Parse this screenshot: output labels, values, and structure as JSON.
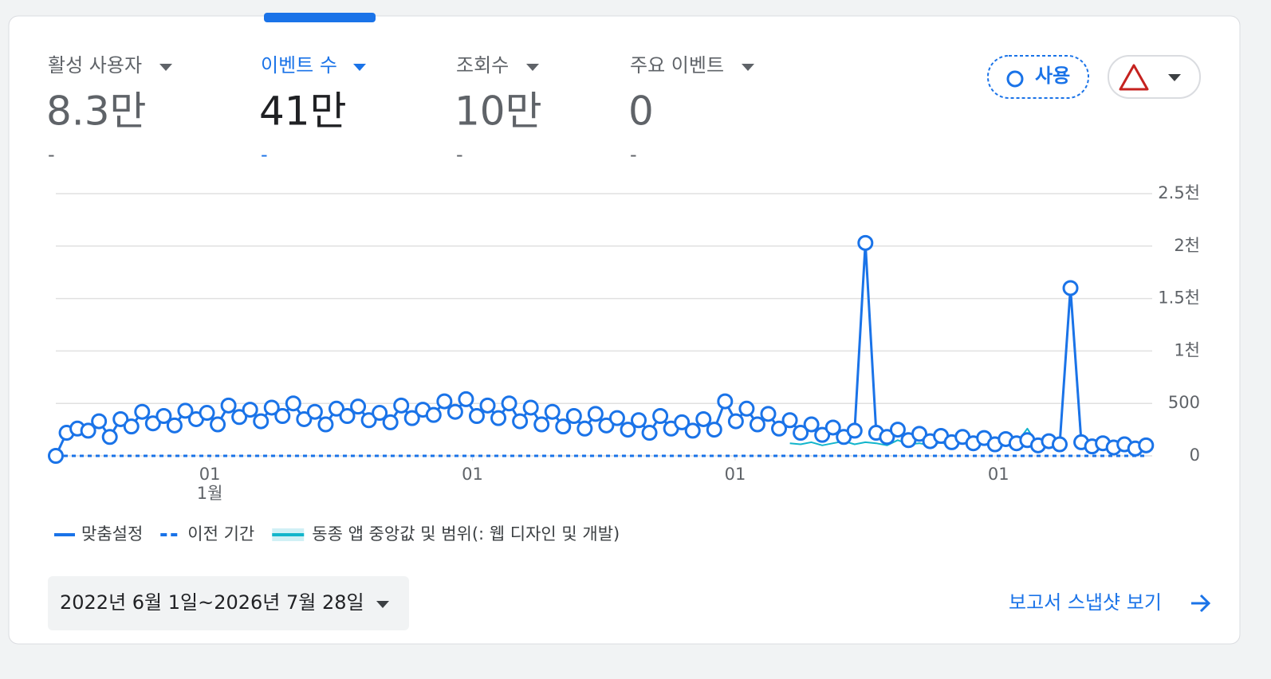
{
  "metrics": [
    {
      "label": "활성 사용자",
      "value": "8.3만",
      "change": "-"
    },
    {
      "label": "이벤트 수",
      "value": "41만",
      "change": "-"
    },
    {
      "label": "조회수",
      "value": "10만",
      "change": "-"
    },
    {
      "label": "주요 이벤트",
      "value": "0",
      "change": "-"
    }
  ],
  "badge": "사용",
  "chart_data": {
    "type": "line",
    "x": [
      0,
      15,
      30,
      45,
      60,
      75,
      90,
      105,
      120,
      135,
      150,
      165,
      180,
      195,
      210,
      225,
      240,
      255,
      270,
      285,
      300,
      315,
      330,
      345,
      360,
      375,
      390,
      405,
      420,
      435,
      450,
      465,
      480,
      495,
      510,
      525,
      540,
      555,
      570,
      585,
      600,
      615,
      630,
      645,
      660,
      675,
      690,
      705,
      720,
      735,
      750,
      765,
      780,
      795,
      810,
      825,
      840,
      855,
      870,
      885,
      900,
      915,
      930,
      945,
      960,
      975,
      990,
      1005,
      1020,
      1035,
      1050,
      1065,
      1080,
      1095,
      1110,
      1125,
      1140,
      1155,
      1170,
      1185,
      1200,
      1215,
      1230,
      1245,
      1260,
      1275,
      1290,
      1305,
      1320,
      1335,
      1350,
      1365,
      1380,
      1395,
      1410,
      1425,
      1440,
      1455,
      1470,
      1485,
      1500,
      1515
    ],
    "series": [
      {
        "name": "맞춤설정",
        "color": "#1a73e8",
        "style": "solid",
        "values": [
          0,
          220,
          260,
          240,
          330,
          180,
          350,
          280,
          420,
          310,
          380,
          290,
          430,
          350,
          410,
          300,
          480,
          370,
          440,
          330,
          460,
          380,
          500,
          350,
          420,
          300,
          450,
          380,
          470,
          340,
          410,
          320,
          480,
          360,
          440,
          390,
          520,
          420,
          540,
          380,
          480,
          360,
          500,
          330,
          460,
          300,
          420,
          280,
          380,
          260,
          400,
          290,
          360,
          250,
          340,
          220,
          380,
          260,
          320,
          240,
          350,
          250,
          520,
          330,
          450,
          300,
          400,
          260,
          340,
          220,
          300,
          200,
          270,
          180,
          240,
          2030,
          220,
          180,
          250,
          150,
          210,
          140,
          190,
          130,
          180,
          120,
          170,
          110,
          160,
          120,
          150,
          100,
          140,
          110,
          1600,
          130,
          90,
          120,
          80,
          110,
          70,
          100
        ]
      },
      {
        "name": "이전 기간",
        "color": "#1a73e8",
        "style": "dashed",
        "values": [
          0,
          0,
          0,
          0,
          0,
          0,
          0,
          0,
          0,
          0,
          0,
          0,
          0,
          0,
          0,
          0,
          0,
          0,
          0,
          0,
          0,
          0,
          0,
          0,
          0,
          0,
          0,
          0,
          0,
          0,
          0,
          0,
          0,
          0,
          0,
          0,
          0,
          0,
          0,
          0,
          0,
          0,
          0,
          0,
          0,
          0,
          0,
          0,
          0,
          0,
          0,
          0,
          0,
          0,
          0,
          0,
          0,
          0,
          0,
          0,
          0,
          0,
          0,
          0,
          0,
          0,
          0,
          0,
          0,
          0,
          0,
          0,
          0,
          0,
          0,
          0,
          0,
          0,
          0,
          0,
          0,
          0,
          0,
          0,
          0,
          0,
          0,
          0,
          0,
          0,
          0,
          0,
          0,
          0,
          0,
          0,
          0,
          0,
          0,
          0,
          0,
          0
        ]
      },
      {
        "name": "동종 앱 중앙값 및 범위(: 웹 디자인 및 개발)",
        "color": "#12b5cb",
        "style": "band",
        "values": [
          null,
          null,
          null,
          null,
          null,
          null,
          null,
          null,
          null,
          null,
          null,
          null,
          null,
          null,
          null,
          null,
          null,
          null,
          null,
          null,
          null,
          null,
          null,
          null,
          null,
          null,
          null,
          null,
          null,
          null,
          null,
          null,
          null,
          null,
          null,
          null,
          null,
          null,
          null,
          null,
          null,
          null,
          null,
          null,
          null,
          null,
          null,
          null,
          null,
          null,
          null,
          null,
          null,
          null,
          null,
          null,
          null,
          null,
          null,
          null,
          null,
          null,
          null,
          null,
          null,
          null,
          null,
          null,
          120,
          110,
          130,
          100,
          120,
          140,
          110,
          130,
          120,
          100,
          150,
          110,
          120,
          100,
          130,
          90,
          140,
          100,
          110,
          90,
          100,
          120,
          260,
          100,
          90,
          110,
          1580,
          100,
          90,
          80,
          100,
          90,
          80,
          90
        ]
      }
    ],
    "xlim": [
      0,
      1518
    ],
    "xticks": [
      {
        "value": 214,
        "label": "01"
      },
      {
        "value": 579,
        "label": "01"
      },
      {
        "value": 944,
        "label": "01"
      },
      {
        "value": 1310,
        "label": "01"
      }
    ],
    "xtick_sublabels": [
      {
        "value": 214,
        "label": "1월"
      }
    ],
    "ylim": [
      0,
      2500
    ],
    "yticks": [
      0,
      500,
      {
        "value": 1000,
        "label": "1천"
      },
      {
        "value": 1500,
        "label": "1.5천"
      },
      {
        "value": 2000,
        "label": "2천"
      },
      {
        "value": 2500,
        "label": "2.5천"
      }
    ],
    "grid": true
  },
  "date_range": "2022년 6월 1일~2026년 7월 28일",
  "snapshot_link": "보고서 스냅샷 보기"
}
